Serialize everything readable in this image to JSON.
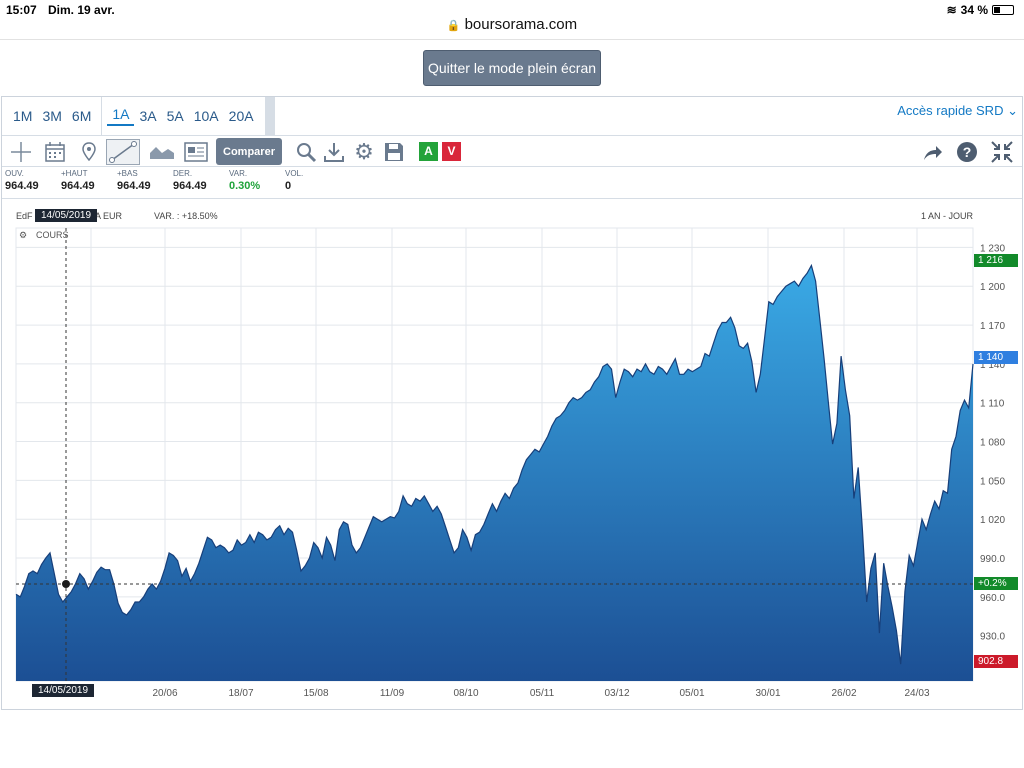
{
  "status": {
    "time": "15:07",
    "date": "Dim. 19 avr.",
    "battery": "34 %"
  },
  "browser": {
    "url": "boursorama.com"
  },
  "fullscreen": {
    "quit_label": "Quitter le mode plein écran"
  },
  "periods": [
    "1M",
    "3M",
    "6M",
    "1A",
    "3A",
    "5A",
    "10A",
    "20A"
  ],
  "active_period": "1A",
  "quick_access": "Accès rapide SRD",
  "toolbar": {
    "compare_label": "Comparer",
    "buy_label": "A",
    "sell_label": "V",
    "buy_color": "#23a33a",
    "sell_color": "#d9263a",
    "icons": [
      "crosshair-icon",
      "calendar-icon",
      "pin-icon",
      "trendline-icon",
      "area-chart-icon",
      "news-icon",
      "search-icon",
      "download-icon",
      "gear-icon",
      "save-icon",
      "share-icon",
      "help-icon",
      "fullscreen-exit-icon"
    ]
  },
  "stats": [
    {
      "label": "OUV.",
      "value": "964.49"
    },
    {
      "label": "+HAUT",
      "value": "964.49"
    },
    {
      "label": "+BAS",
      "value": "964.49"
    },
    {
      "label": "DER.",
      "value": "964.49"
    },
    {
      "label": "VAR.",
      "value": "0.30%"
    },
    {
      "label": "VOL.",
      "value": "0"
    }
  ],
  "info": {
    "name_left": "EdF",
    "name_right": "A EUR",
    "var": "VAR. : +18.50%",
    "period_label": "1 AN - JOUR",
    "cours_label": "COURS"
  },
  "cursor": {
    "date_top": "14/05/2019",
    "date_bottom": "14/05/2019",
    "var_tag": "+0.2%"
  },
  "price_tags": {
    "high": "1 216",
    "last": "1 140",
    "low": "902.8",
    "high_color": "#128a2a",
    "last_color": "#2f7fe0",
    "low_color": "#cc1a2a",
    "var_color": "#128a2a"
  },
  "chart_data": {
    "type": "area",
    "yticks": [
      "1 230",
      "1 200",
      "1 170",
      "1 140",
      "1 110",
      "1 080",
      "1 050",
      "1 020",
      "990.0",
      "960.0",
      "930.0"
    ],
    "xticks": [
      "20/06",
      "18/07",
      "15/08",
      "11/09",
      "08/10",
      "05/11",
      "03/12",
      "05/01",
      "30/01",
      "26/02",
      "24/03"
    ],
    "ylim": [
      895,
      1245
    ],
    "y": [
      962,
      960,
      968,
      978,
      980,
      978,
      985,
      990,
      994,
      978,
      962,
      956,
      960,
      964,
      970,
      978,
      974,
      966,
      972,
      979,
      983,
      981,
      981,
      970,
      955,
      948,
      946,
      950,
      956,
      956,
      960,
      966,
      970,
      966,
      972,
      982,
      994,
      992,
      988,
      976,
      982,
      972,
      978,
      986,
      996,
      1006,
      1004,
      998,
      1000,
      998,
      994,
      996,
      1004,
      1000,
      1002,
      1008,
      1002,
      1010,
      1008,
      1004,
      1006,
      1012,
      1015,
      1008,
      1013,
      1010,
      996,
      980,
      984,
      990,
      1002,
      998,
      990,
      1006,
      1000,
      988,
      1012,
      1018,
      1016,
      1000,
      994,
      998,
      1006,
      1014,
      1022,
      1020,
      1018,
      1020,
      1022,
      1021,
      1026,
      1038,
      1032,
      1030,
      1036,
      1034,
      1038,
      1032,
      1026,
      1030,
      1024,
      1014,
      1004,
      994,
      998,
      1012,
      1006,
      996,
      1008,
      1010,
      1016,
      1024,
      1032,
      1026,
      1034,
      1040,
      1036,
      1044,
      1048,
      1058,
      1066,
      1070,
      1074,
      1072,
      1078,
      1084,
      1092,
      1098,
      1100,
      1104,
      1110,
      1114,
      1112,
      1114,
      1118,
      1120,
      1126,
      1130,
      1138,
      1140,
      1136,
      1114,
      1126,
      1136,
      1134,
      1130,
      1136,
      1134,
      1140,
      1134,
      1132,
      1138,
      1136,
      1132,
      1138,
      1144,
      1132,
      1132,
      1136,
      1134,
      1136,
      1138,
      1148,
      1146,
      1156,
      1166,
      1172,
      1172,
      1176,
      1168,
      1154,
      1152,
      1156,
      1142,
      1118,
      1132,
      1160,
      1188,
      1186,
      1192,
      1196,
      1200,
      1202,
      1204,
      1200,
      1206,
      1210,
      1216,
      1204,
      1174,
      1144,
      1110,
      1078,
      1094,
      1146,
      1120,
      1100,
      1036,
      1060,
      1012,
      956,
      982,
      994,
      932,
      986,
      968,
      952,
      934,
      908,
      964,
      992,
      984,
      1002,
      1020,
      1012,
      1024,
      1034,
      1028,
      1042,
      1040,
      1074,
      1084,
      1104,
      1112,
      1106,
      1140
    ]
  }
}
